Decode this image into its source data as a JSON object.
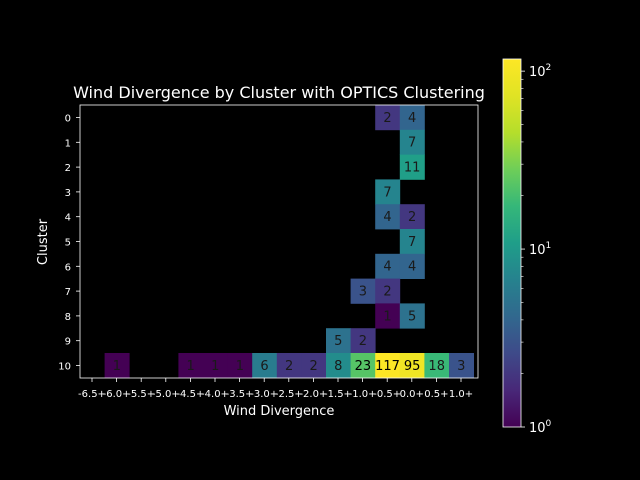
{
  "chart_data": {
    "type": "heatmap",
    "title": "Wind Divergence by Cluster with OPTICS Clustering",
    "xlabel": "Wind Divergence",
    "ylabel": "Cluster",
    "x_tick_labels": [
      "-6.5+",
      "-6.0+",
      "-5.5+",
      "-5.0+",
      "-4.5+",
      "-4.0+",
      "-3.5+",
      "-3.0+",
      "-2.5+",
      "-2.0+",
      "-1.5+",
      "-1.0+",
      "-0.5+",
      "0.0+",
      "0.5+",
      "1.0+"
    ],
    "y_tick_labels": [
      "0",
      "1",
      "2",
      "3",
      "4",
      "5",
      "6",
      "7",
      "8",
      "9",
      "10"
    ],
    "cells": [
      {
        "cluster": 0,
        "bin": "-0.5+",
        "count": 2
      },
      {
        "cluster": 0,
        "bin": "0.0+",
        "count": 4
      },
      {
        "cluster": 1,
        "bin": "0.0+",
        "count": 7
      },
      {
        "cluster": 2,
        "bin": "0.0+",
        "count": 11
      },
      {
        "cluster": 3,
        "bin": "-0.5+",
        "count": 7
      },
      {
        "cluster": 4,
        "bin": "-0.5+",
        "count": 4
      },
      {
        "cluster": 4,
        "bin": "0.0+",
        "count": 2
      },
      {
        "cluster": 5,
        "bin": "0.0+",
        "count": 7
      },
      {
        "cluster": 6,
        "bin": "-0.5+",
        "count": 4
      },
      {
        "cluster": 6,
        "bin": "0.0+",
        "count": 4
      },
      {
        "cluster": 7,
        "bin": "-1.0+",
        "count": 3
      },
      {
        "cluster": 7,
        "bin": "-0.5+",
        "count": 2
      },
      {
        "cluster": 8,
        "bin": "-0.5+",
        "count": 1
      },
      {
        "cluster": 8,
        "bin": "0.0+",
        "count": 5
      },
      {
        "cluster": 9,
        "bin": "-1.5+",
        "count": 5
      },
      {
        "cluster": 9,
        "bin": "-1.0+",
        "count": 2
      },
      {
        "cluster": 10,
        "bin": "-6.0+",
        "count": 1
      },
      {
        "cluster": 10,
        "bin": "-4.5+",
        "count": 1
      },
      {
        "cluster": 10,
        "bin": "-4.0+",
        "count": 1
      },
      {
        "cluster": 10,
        "bin": "-3.5+",
        "count": 1
      },
      {
        "cluster": 10,
        "bin": "-3.0+",
        "count": 6
      },
      {
        "cluster": 10,
        "bin": "-2.5+",
        "count": 2
      },
      {
        "cluster": 10,
        "bin": "-2.0+",
        "count": 2
      },
      {
        "cluster": 10,
        "bin": "-1.5+",
        "count": 8
      },
      {
        "cluster": 10,
        "bin": "-1.0+",
        "count": 23
      },
      {
        "cluster": 10,
        "bin": "-0.5+",
        "count": 117
      },
      {
        "cluster": 10,
        "bin": "0.0+",
        "count": 95
      },
      {
        "cluster": 10,
        "bin": "0.5+",
        "count": 18
      },
      {
        "cluster": 10,
        "bin": "1.0+",
        "count": 3
      }
    ],
    "colorbar": {
      "scale": "log",
      "colormap": "viridis",
      "range": [
        1,
        117
      ],
      "tick_labels": [
        {
          "base": "10",
          "exp": "0",
          "value": 1
        },
        {
          "base": "10",
          "exp": "1",
          "value": 10
        },
        {
          "base": "10",
          "exp": "2",
          "value": 100
        }
      ]
    },
    "background": "#000000",
    "foreground": "#ffffff",
    "grid": false,
    "legend": "none"
  }
}
